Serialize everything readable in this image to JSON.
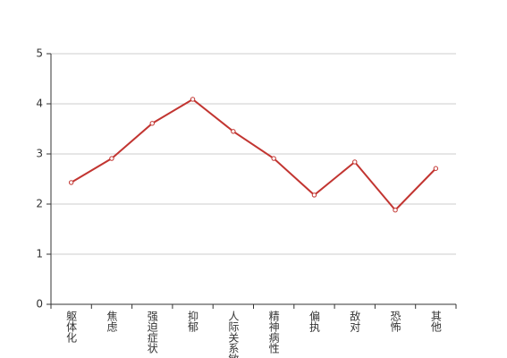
{
  "chart_data": {
    "type": "line",
    "categories": [
      "躯体化",
      "焦虑",
      "强迫症状",
      "抑郁",
      "人际关系敏感",
      "精神病性",
      "偏执",
      "敌对",
      "恐怖",
      "其他"
    ],
    "series": [
      {
        "color": "#c23531",
        "values": [
          2.43,
          2.91,
          3.61,
          4.09,
          3.45,
          2.91,
          2.18,
          2.84,
          1.88,
          2.71
        ]
      }
    ],
    "ylim": [
      0,
      5
    ],
    "yticks": [
      0,
      1,
      2,
      3,
      4,
      5
    ],
    "grid": true
  }
}
